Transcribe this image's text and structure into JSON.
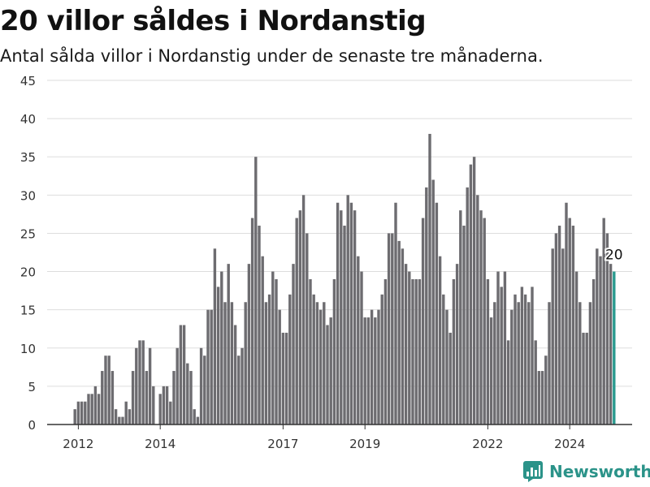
{
  "header": {
    "title": "20 villor såldes i Nordanstig",
    "subtitle": "Antal sålda villor i Nordanstig under de senaste tre månaderna."
  },
  "brand": {
    "name": "Newsworthy",
    "icon": "chart-logo-icon",
    "color": "#2b9389"
  },
  "chart_data": {
    "type": "bar",
    "title": "20 villor såldes i Nordanstig",
    "subtitle": "Antal sålda villor i Nordanstig under de senaste tre månaderna.",
    "xlabel": "",
    "ylabel": "",
    "ylim": [
      0,
      45
    ],
    "yticks": [
      0,
      5,
      10,
      15,
      20,
      25,
      30,
      35,
      40,
      45
    ],
    "xtick_labels": [
      {
        "label": "2012",
        "index": 1
      },
      {
        "label": "2014",
        "index": 25
      },
      {
        "label": "2017",
        "index": 61
      },
      {
        "label": "2019",
        "index": 85
      },
      {
        "label": "2022",
        "index": 121
      },
      {
        "label": "2024",
        "index": 145
      }
    ],
    "grid": true,
    "bar_color": "#6d6c70",
    "highlight_color": "#2a9a8f",
    "highlight_label": "20",
    "values": [
      2,
      3,
      3,
      3,
      4,
      4,
      5,
      4,
      7,
      9,
      9,
      7,
      2,
      1,
      1,
      3,
      2,
      7,
      10,
      11,
      11,
      7,
      10,
      5,
      0,
      4,
      5,
      5,
      3,
      7,
      10,
      13,
      13,
      8,
      7,
      2,
      1,
      10,
      9,
      15,
      15,
      23,
      18,
      20,
      16,
      21,
      16,
      13,
      9,
      10,
      16,
      21,
      27,
      35,
      26,
      22,
      16,
      17,
      20,
      19,
      15,
      12,
      12,
      17,
      21,
      27,
      28,
      30,
      25,
      19,
      17,
      16,
      15,
      16,
      13,
      14,
      19,
      29,
      28,
      26,
      30,
      29,
      28,
      22,
      20,
      14,
      14,
      15,
      14,
      15,
      17,
      19,
      25,
      25,
      29,
      24,
      23,
      21,
      20,
      19,
      19,
      19,
      27,
      31,
      38,
      32,
      29,
      22,
      17,
      15,
      12,
      19,
      21,
      28,
      26,
      31,
      34,
      35,
      30,
      28,
      27,
      19,
      14,
      16,
      20,
      18,
      20,
      11,
      15,
      17,
      16,
      18,
      17,
      16,
      18,
      11,
      7,
      7,
      9,
      16,
      23,
      25,
      26,
      23,
      29,
      27,
      26,
      20,
      16,
      12,
      12,
      16,
      19,
      23,
      22,
      27,
      25,
      21,
      20
    ]
  }
}
